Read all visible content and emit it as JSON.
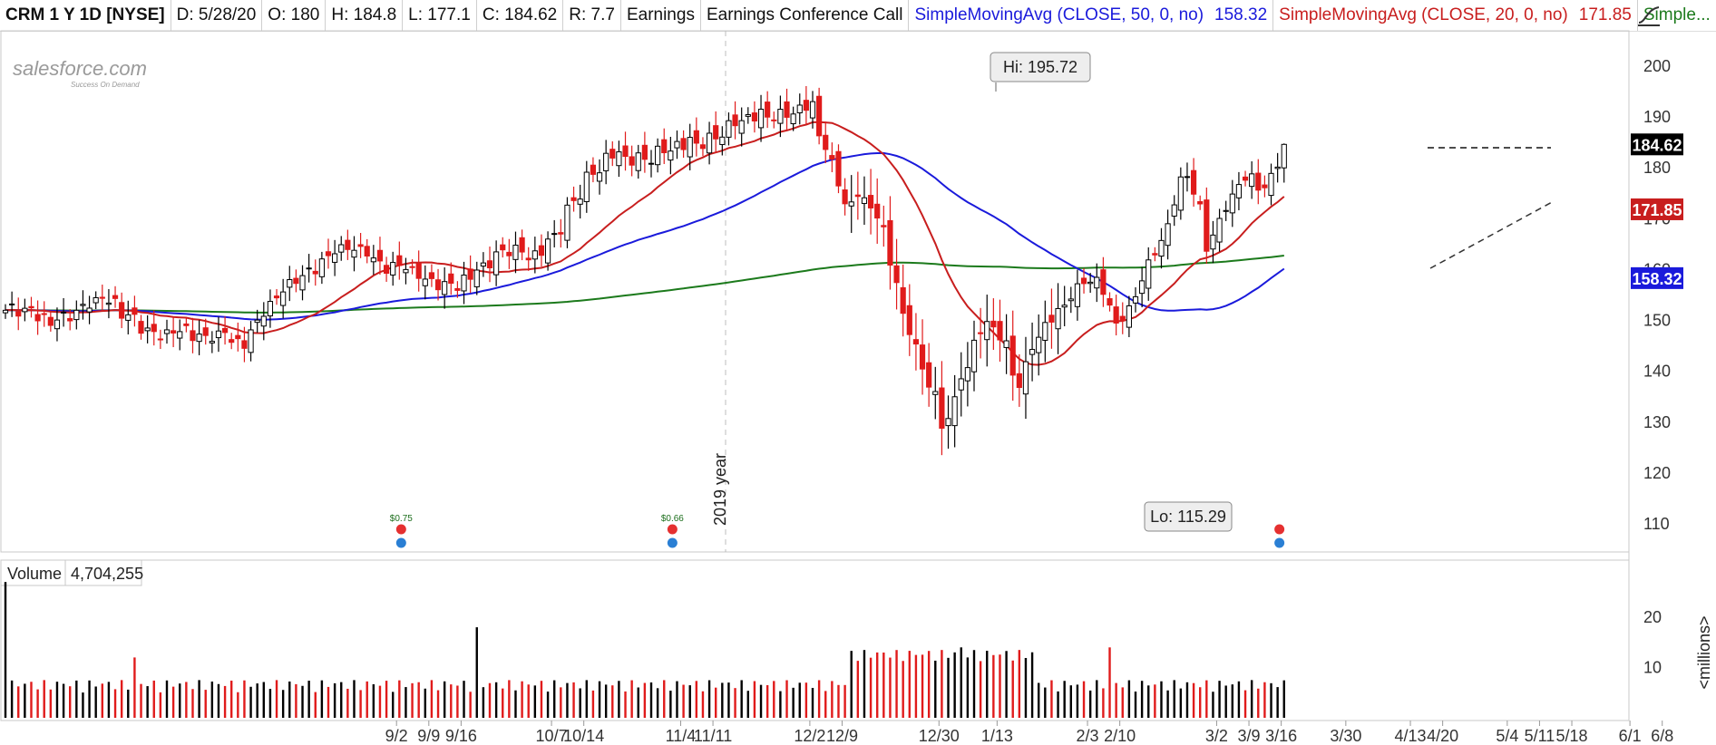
{
  "header": {
    "symbol": "CRM 1 Y 1D [NYSE]",
    "date": "D: 5/28/20",
    "open": "O: 180",
    "high": "H: 184.8",
    "low": "L: 177.1",
    "close": "C: 184.62",
    "range": "R: 7.7",
    "earnings": "Earnings",
    "conf_call": "Earnings Conference Call",
    "sma50_label": "SimpleMovingAvg (CLOSE, 50, 0, no)",
    "sma50_value": "158.32",
    "sma20_label": "SimpleMovingAvg (CLOSE, 20, 0, no)",
    "sma20_value": "171.85",
    "sma200_label": "Simple...",
    "colors": {
      "sma50": "#1a1adb",
      "sma20": "#c81e1e",
      "sma200": "#1c7a1c"
    }
  },
  "logo": {
    "text": "salesforce.com",
    "tagline": "Success On Demand"
  },
  "panels": {
    "volume_label": "Volume",
    "volume_value": "4,704,255",
    "millions_label": "<millions>"
  },
  "chart_data": [
    {
      "type": "candlestick",
      "ylim": [
        105,
        205
      ],
      "y_ticks": [
        110,
        120,
        130,
        140,
        150,
        160,
        170,
        180,
        190,
        200
      ],
      "x_ticks": [
        "9/2",
        "9/9",
        "9/16",
        "10/7",
        "10/14",
        "11/4",
        "11/11",
        "12/2",
        "12/9",
        "12/30",
        "1/13",
        "2/3",
        "2/10",
        "3/2",
        "3/9",
        "3/16",
        "3/30",
        "4/13",
        "4/20",
        "5/4",
        "5/11",
        "5/18",
        "6/1",
        "6/8"
      ],
      "year_label": "2019 year",
      "annotations": {
        "high": "Hi: 195.72",
        "low": "Lo: 115.29"
      },
      "earnings_events": [
        {
          "label": "$0.75"
        },
        {
          "label": "$0.66"
        },
        {
          "label": ""
        }
      ],
      "price_tags": [
        {
          "value": "184.62",
          "bg": "#000000",
          "fg": "#ffffff"
        },
        {
          "value": "171.85",
          "bg": "#c81e1e",
          "fg": "#ffffff"
        },
        {
          "value": "158.32",
          "bg": "#1a1adb",
          "fg": "#ffffff"
        }
      ],
      "colors": {
        "up": "#000000",
        "down": "#e01b1b"
      }
    },
    {
      "type": "bar",
      "name": "Volume",
      "y_ticks": [
        10,
        20
      ],
      "ylim": [
        0,
        28
      ]
    }
  ]
}
